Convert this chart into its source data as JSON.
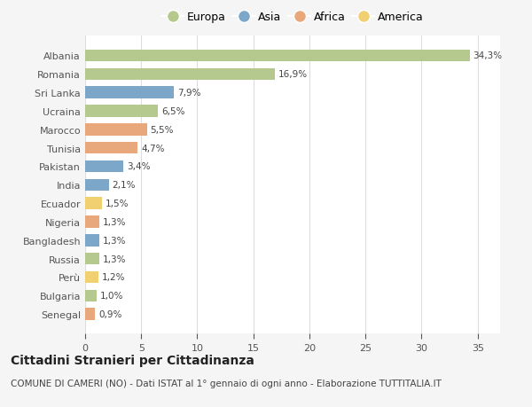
{
  "countries": [
    "Albania",
    "Romania",
    "Sri Lanka",
    "Ucraina",
    "Marocco",
    "Tunisia",
    "Pakistan",
    "India",
    "Ecuador",
    "Nigeria",
    "Bangladesh",
    "Russia",
    "Perù",
    "Bulgaria",
    "Senegal"
  ],
  "values": [
    34.3,
    16.9,
    7.9,
    6.5,
    5.5,
    4.7,
    3.4,
    2.1,
    1.5,
    1.3,
    1.3,
    1.3,
    1.2,
    1.0,
    0.9
  ],
  "labels": [
    "34,3%",
    "16,9%",
    "7,9%",
    "6,5%",
    "5,5%",
    "4,7%",
    "3,4%",
    "2,1%",
    "1,5%",
    "1,3%",
    "1,3%",
    "1,3%",
    "1,2%",
    "1,0%",
    "0,9%"
  ],
  "continents": [
    "Europa",
    "Europa",
    "Asia",
    "Europa",
    "Africa",
    "Africa",
    "Asia",
    "Asia",
    "America",
    "Africa",
    "Asia",
    "Europa",
    "America",
    "Europa",
    "Africa"
  ],
  "continent_colors": {
    "Europa": "#b5c98e",
    "Asia": "#7da7c9",
    "Africa": "#e8a87c",
    "America": "#f0d070"
  },
  "legend_order": [
    "Europa",
    "Asia",
    "Africa",
    "America"
  ],
  "background_color": "#f5f5f5",
  "plot_bg_color": "#ffffff",
  "title": "Cittadini Stranieri per Cittadinanza",
  "subtitle": "COMUNE DI CAMERI (NO) - Dati ISTAT al 1° gennaio di ogni anno - Elaborazione TUTTITALIA.IT",
  "xlim": [
    0,
    37
  ],
  "xticks": [
    0,
    5,
    10,
    15,
    20,
    25,
    30,
    35
  ],
  "bar_height": 0.65,
  "title_fontsize": 10,
  "subtitle_fontsize": 7.5,
  "label_fontsize": 7.5,
  "tick_fontsize": 8,
  "legend_fontsize": 9
}
